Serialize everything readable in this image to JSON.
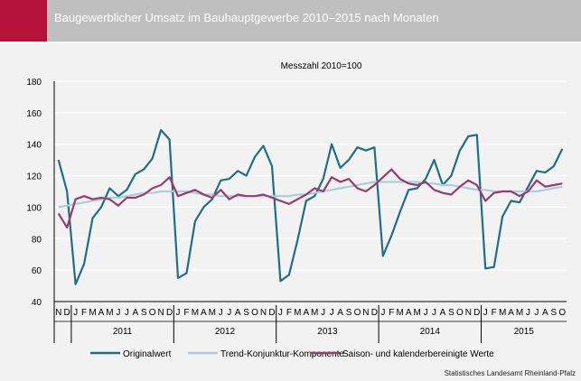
{
  "header": {
    "title": "Baugewerblicher Umsatz im Bauhauptgewerbe 2010–2015 nach Monaten",
    "accent_color": "#b5123a",
    "background_color": "#bfbfbf"
  },
  "source": "Statistisches Landesamt Rheinland-Pfalz",
  "chart_data": {
    "type": "line",
    "subtitle": "Messzahl 2010=100",
    "ylim": [
      40,
      180
    ],
    "yticks": [
      40,
      60,
      80,
      100,
      120,
      140,
      160,
      180
    ],
    "grid": true,
    "legend_position": "bottom",
    "x_month_labels": [
      "N",
      "D",
      "J",
      "F",
      "M",
      "A",
      "M",
      "J",
      "J",
      "A",
      "S",
      "O",
      "N",
      "D",
      "J",
      "F",
      "M",
      "A",
      "M",
      "J",
      "J",
      "A",
      "S",
      "O",
      "N",
      "D",
      "J",
      "F",
      "M",
      "A",
      "M",
      "J",
      "J",
      "A",
      "S",
      "O",
      "N",
      "D",
      "J",
      "F",
      "M",
      "A",
      "M",
      "J",
      "J",
      "A",
      "S",
      "O",
      "N",
      "D",
      "J",
      "F",
      "M",
      "A",
      "M",
      "J",
      "J",
      "A",
      "S",
      "O"
    ],
    "year_groups": [
      {
        "label": "2011",
        "start": 2,
        "count": 12
      },
      {
        "label": "2012",
        "start": 14,
        "count": 12
      },
      {
        "label": "2013",
        "start": 26,
        "count": 12
      },
      {
        "label": "2014",
        "start": 38,
        "count": 12
      },
      {
        "label": "2015",
        "start": 50,
        "count": 10
      }
    ],
    "series": [
      {
        "name": "Originalwert",
        "color": "#1f6e8c",
        "values": [
          130,
          110,
          51,
          64,
          93,
          100,
          112,
          107,
          111,
          121,
          124,
          131,
          149,
          143,
          55,
          58,
          91,
          100,
          105,
          117,
          118,
          123,
          120,
          132,
          139,
          126,
          53,
          57,
          79,
          104,
          107,
          118,
          140,
          125,
          130,
          138,
          136,
          138,
          69,
          82,
          97,
          111,
          112,
          118,
          130,
          114,
          120,
          136,
          145,
          146,
          61,
          62,
          94,
          104,
          103,
          113,
          123,
          122,
          126,
          137
        ]
      },
      {
        "name": "Trend-Konjunktur-Komponente",
        "color": "#a6d0e0",
        "values": [
          100,
          101,
          102,
          103,
          104,
          105,
          106,
          106,
          107,
          108,
          109,
          109,
          110,
          110,
          110,
          110,
          109,
          108,
          108,
          107,
          107,
          107,
          107,
          107,
          107,
          107,
          107,
          107,
          108,
          108,
          109,
          110,
          111,
          112,
          113,
          114,
          115,
          116,
          116,
          116,
          116,
          116,
          116,
          115,
          115,
          114,
          114,
          113,
          112,
          111,
          111,
          110,
          110,
          110,
          110,
          110,
          110,
          111,
          112,
          113
        ]
      },
      {
        "name": "Saison- und kalenderbereinigte Werte",
        "color": "#9b3a6e",
        "values": [
          96,
          87,
          105,
          107,
          105,
          106,
          105,
          101,
          106,
          106,
          108,
          112,
          114,
          119,
          107,
          109,
          111,
          108,
          106,
          111,
          105,
          108,
          107,
          107,
          108,
          106,
          104,
          102,
          105,
          108,
          112,
          110,
          119,
          116,
          118,
          112,
          110,
          114,
          119,
          124,
          118,
          115,
          114,
          116,
          111,
          109,
          108,
          113,
          117,
          114,
          104,
          109,
          110,
          110,
          107,
          110,
          117,
          113,
          114,
          115
        ]
      }
    ]
  }
}
